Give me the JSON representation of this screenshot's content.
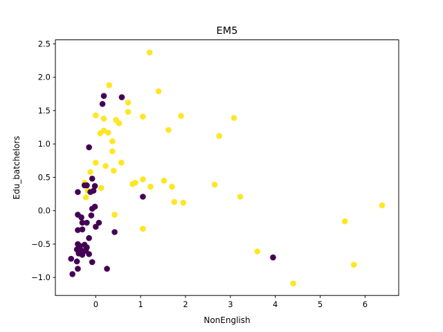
{
  "chart_data": {
    "type": "scatter",
    "title": "EM5",
    "xlabel": "NonEnglish",
    "ylabel": "Edu_batchelors",
    "xlim": [
      -0.9,
      6.75
    ],
    "ylim": [
      -1.27,
      2.56
    ],
    "xticks": [
      0,
      1,
      2,
      3,
      4,
      5,
      6
    ],
    "xtick_labels": [
      "0",
      "1",
      "2",
      "3",
      "4",
      "5",
      "6"
    ],
    "yticks": [
      -1.0,
      -0.5,
      0.0,
      0.5,
      1.0,
      1.5,
      2.0,
      2.5
    ],
    "ytick_labels": [
      "−1.0",
      "−0.5",
      "0.0",
      "0.5",
      "1.0",
      "1.5",
      "2.0",
      "2.5"
    ],
    "grid": false,
    "legend": false,
    "colors": {
      "class_0": "#440154",
      "class_1": "#fde725"
    },
    "series": [
      {
        "color": "#fde725",
        "points": [
          [
            1.2,
            2.37
          ],
          [
            0.3,
            1.88
          ],
          [
            1.4,
            1.79
          ],
          [
            0.72,
            1.62
          ],
          [
            0.72,
            1.48
          ],
          [
            0.0,
            1.43
          ],
          [
            0.18,
            1.38
          ],
          [
            1.05,
            1.41
          ],
          [
            1.9,
            1.42
          ],
          [
            3.08,
            1.39
          ],
          [
            0.45,
            1.36
          ],
          [
            0.52,
            1.31
          ],
          [
            0.1,
            1.16
          ],
          [
            0.18,
            1.2
          ],
          [
            0.28,
            1.17
          ],
          [
            1.62,
            1.21
          ],
          [
            2.75,
            1.12
          ],
          [
            0.37,
            1.04
          ],
          [
            0.37,
            0.89
          ],
          [
            0.0,
            0.72
          ],
          [
            0.57,
            0.72
          ],
          [
            0.22,
            0.67
          ],
          [
            0.4,
            0.6
          ],
          [
            -0.12,
            0.58
          ],
          [
            1.05,
            0.47
          ],
          [
            0.88,
            0.42
          ],
          [
            0.82,
            0.4
          ],
          [
            1.22,
            0.36
          ],
          [
            1.52,
            0.45
          ],
          [
            1.7,
            0.36
          ],
          [
            2.65,
            0.39
          ],
          [
            0.12,
            0.34
          ],
          [
            -0.25,
            0.42
          ],
          [
            -0.18,
            0.3
          ],
          [
            -0.22,
            0.2
          ],
          [
            1.75,
            0.13
          ],
          [
            1.95,
            0.12
          ],
          [
            3.22,
            0.21
          ],
          [
            0.42,
            -0.06
          ],
          [
            1.05,
            -0.27
          ],
          [
            5.55,
            -0.16
          ],
          [
            6.38,
            0.08
          ],
          [
            3.6,
            -0.61
          ],
          [
            5.75,
            -0.81
          ],
          [
            4.4,
            -1.09
          ]
        ]
      },
      {
        "color": "#440154",
        "points": [
          [
            0.18,
            1.72
          ],
          [
            0.58,
            1.7
          ],
          [
            0.15,
            1.6
          ],
          [
            -0.15,
            0.95
          ],
          [
            -0.08,
            0.48
          ],
          [
            -0.25,
            0.38
          ],
          [
            -0.2,
            0.38
          ],
          [
            -0.02,
            0.37
          ],
          [
            -0.4,
            0.28
          ],
          [
            -0.12,
            0.28
          ],
          [
            -0.05,
            0.3
          ],
          [
            1.05,
            0.21
          ],
          [
            -0.02,
            0.06
          ],
          [
            -0.08,
            0.03
          ],
          [
            -0.4,
            -0.06
          ],
          [
            -0.32,
            -0.1
          ],
          [
            -0.1,
            -0.07
          ],
          [
            -0.3,
            -0.18
          ],
          [
            -0.2,
            -0.18
          ],
          [
            0.07,
            -0.18
          ],
          [
            -0.4,
            -0.29
          ],
          [
            -0.3,
            -0.28
          ],
          [
            0.0,
            -0.24
          ],
          [
            0.42,
            -0.32
          ],
          [
            -0.15,
            -0.41
          ],
          [
            -0.4,
            -0.5
          ],
          [
            -0.35,
            -0.53
          ],
          [
            -0.25,
            -0.51
          ],
          [
            -0.2,
            -0.55
          ],
          [
            -0.42,
            -0.58
          ],
          [
            -0.3,
            -0.6
          ],
          [
            -0.22,
            -0.6
          ],
          [
            -0.38,
            -0.64
          ],
          [
            -0.3,
            -0.66
          ],
          [
            -0.15,
            -0.65
          ],
          [
            -0.55,
            -0.72
          ],
          [
            -0.42,
            -0.76
          ],
          [
            -0.08,
            -0.77
          ],
          [
            -0.4,
            -0.87
          ],
          [
            0.25,
            -0.87
          ],
          [
            -0.52,
            -0.95
          ],
          [
            3.95,
            -0.7
          ]
        ]
      }
    ]
  }
}
